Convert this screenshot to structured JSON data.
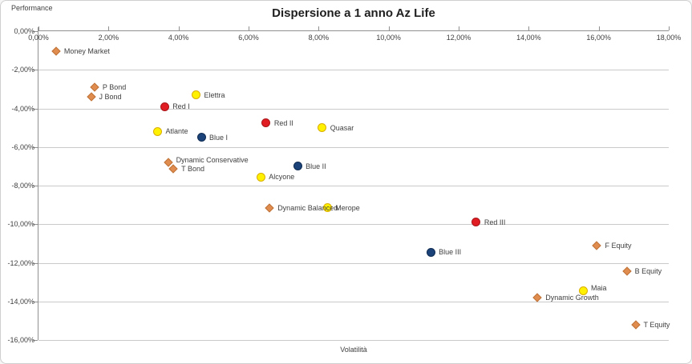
{
  "title": "Dispersione a 1 anno Az Life",
  "axes": {
    "x_label": "Volatilità",
    "y_label": "Performance"
  },
  "chart_data": {
    "type": "scatter",
    "title": "Dispersione a 1 anno Az Life",
    "xlabel": "Volatilità",
    "ylabel": "Performance",
    "xlim": [
      0,
      18
    ],
    "ylim": [
      -16,
      0
    ],
    "grid": "horizontal",
    "x_ticks": [
      {
        "v": 0,
        "label": "0,00%"
      },
      {
        "v": 2,
        "label": "2,00%"
      },
      {
        "v": 4,
        "label": "4,00%"
      },
      {
        "v": 6,
        "label": "6,00%"
      },
      {
        "v": 8,
        "label": "8,00%"
      },
      {
        "v": 10,
        "label": "10,00%"
      },
      {
        "v": 12,
        "label": "12,00%"
      },
      {
        "v": 14,
        "label": "14,00%"
      },
      {
        "v": 16,
        "label": "16,00%"
      },
      {
        "v": 18,
        "label": "18,00%"
      }
    ],
    "y_ticks": [
      {
        "v": 0,
        "label": "0,00%"
      },
      {
        "v": -2,
        "label": "-2,00%"
      },
      {
        "v": -4,
        "label": "-4,00%"
      },
      {
        "v": -6,
        "label": "-6,00%"
      },
      {
        "v": -8,
        "label": "-8,00%"
      },
      {
        "v": -10,
        "label": "-10,00%"
      },
      {
        "v": -12,
        "label": "-12,00%"
      },
      {
        "v": -14,
        "label": "-14,00%"
      },
      {
        "v": -16,
        "label": "-16,00%"
      }
    ],
    "series": [
      {
        "name": "orange-diamonds",
        "marker": "diamond",
        "fill": "#E08C4E",
        "stroke": "#BE7339",
        "points": [
          {
            "label": "Money Market",
            "x": 0.5,
            "y": -1.05
          },
          {
            "label": "P Bond",
            "x": 1.6,
            "y": -2.9
          },
          {
            "label": "J Bond",
            "x": 1.5,
            "y": -3.4
          },
          {
            "label": "Dynamic Conservative",
            "x": 3.7,
            "y": -6.8,
            "label_dy": -3
          },
          {
            "label": "T Bond",
            "x": 3.85,
            "y": -7.15
          },
          {
            "label": "Dynamic Balanced",
            "x": 6.6,
            "y": -9.15
          },
          {
            "label": "F Equity",
            "x": 15.95,
            "y": -11.1
          },
          {
            "label": "B Equity",
            "x": 16.8,
            "y": -12.45
          },
          {
            "label": "Dynamic Growth",
            "x": 14.25,
            "y": -13.8
          },
          {
            "label": "T Equity",
            "x": 17.05,
            "y": -15.2
          }
        ]
      },
      {
        "name": "red-circles",
        "marker": "circle",
        "fill": "#E01D23",
        "stroke": "#A8161A",
        "points": [
          {
            "label": "Red I",
            "x": 3.6,
            "y": -3.9
          },
          {
            "label": "Red II",
            "x": 6.5,
            "y": -4.75
          },
          {
            "label": "Red III",
            "x": 12.5,
            "y": -9.9
          }
        ]
      },
      {
        "name": "yellow-circles",
        "marker": "circle",
        "fill": "#FFF100",
        "stroke": "#D9AE00",
        "points": [
          {
            "label": "Elettra",
            "x": 4.5,
            "y": -3.3
          },
          {
            "label": "Atlante",
            "x": 3.4,
            "y": -5.2
          },
          {
            "label": "Quasar",
            "x": 8.1,
            "y": -5.0
          },
          {
            "label": "Alcyone",
            "x": 6.35,
            "y": -7.55
          },
          {
            "label": "Merope",
            "x": 8.25,
            "y": -9.15
          },
          {
            "label": "Maia",
            "x": 15.55,
            "y": -13.45,
            "label_dy": -3
          }
        ]
      },
      {
        "name": "blue-circles",
        "marker": "circle",
        "fill": "#1B4379",
        "stroke": "#0F2B52",
        "points": [
          {
            "label": "Blue I",
            "x": 4.65,
            "y": -5.5
          },
          {
            "label": "Blue II",
            "x": 7.4,
            "y": -7.0
          },
          {
            "label": "Blue III",
            "x": 11.2,
            "y": -11.45
          }
        ]
      }
    ]
  }
}
